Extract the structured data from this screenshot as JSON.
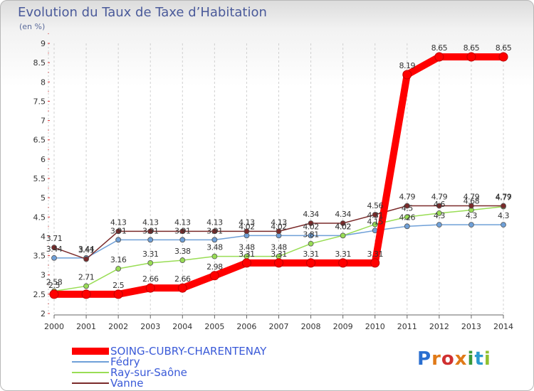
{
  "title": "Evolution du Taux de Taxe d’Habitation",
  "subtitle": "(en %)",
  "chart_data": {
    "type": "line",
    "title": "Evolution du Taux de Taxe d’Habitation",
    "subtitle": "(en %)",
    "xlabel": "",
    "ylabel": "",
    "x": [
      "2000",
      "2001",
      "2002",
      "2003",
      "2004",
      "2005",
      "2006",
      "2007",
      "2008",
      "2009",
      "2010",
      "2011",
      "2012",
      "2013",
      "2014"
    ],
    "ylim": [
      2,
      9
    ],
    "yticks": [
      "2",
      "2.5",
      "3",
      "3.5",
      "4",
      "4.5",
      "5",
      "5.5",
      "6",
      "6.5",
      "7",
      "7.5",
      "8",
      "8.5",
      "9"
    ],
    "grid": "vertical dashed",
    "legend_position": "bottom-left",
    "series": [
      {
        "name": "SOING-CUBRY-CHARENTENAY",
        "color": "#ff0000",
        "values": [
          2.5,
          2.5,
          2.5,
          2.66,
          2.66,
          2.98,
          3.31,
          3.31,
          3.31,
          3.31,
          3.31,
          8.19,
          8.65,
          8.65,
          8.65
        ],
        "labels": [
          "2.5",
          "",
          "2.5",
          "2.66",
          "2.66",
          "2.98",
          "3.31",
          "3.31",
          "3.31",
          "3.31",
          "3.31",
          "8.19",
          "8.65",
          "8.65",
          "8.65"
        ]
      },
      {
        "name": "Fédry",
        "color": "#6fa0d8",
        "values": [
          3.44,
          3.44,
          3.91,
          3.91,
          3.91,
          3.91,
          4.02,
          4.02,
          4.02,
          4.02,
          4.15,
          4.26,
          4.3,
          4.3,
          4.3
        ],
        "labels": [
          "3.44",
          "3.44",
          "3.91",
          "3.91",
          "3.91",
          "3.91",
          "4.02",
          "4.02",
          "4.02",
          "4.02",
          "4.15",
          "4.26",
          "4.3",
          "4.3",
          "4.3"
        ]
      },
      {
        "name": "Ray-sur-Saône",
        "color": "#99dd55",
        "values": [
          2.58,
          2.71,
          3.16,
          3.31,
          3.38,
          3.48,
          3.48,
          3.48,
          3.81,
          4.02,
          4.31,
          4.5,
          4.6,
          4.68,
          4.77
        ],
        "labels": [
          "2.58",
          "2.71",
          "3.16",
          "3.31",
          "3.38",
          "3.48",
          "3.48",
          "3.48",
          "3.81",
          "4.02",
          "4.31",
          "4.5",
          "4.6",
          "4.68",
          "4.77"
        ]
      },
      {
        "name": "Vanne",
        "color": "#7a2a2a",
        "values": [
          3.71,
          3.41,
          4.13,
          4.13,
          4.13,
          4.13,
          4.13,
          4.13,
          4.34,
          4.34,
          4.56,
          4.79,
          4.79,
          4.79,
          4.79
        ],
        "labels": [
          "3.71",
          "3.41",
          "4.13",
          "4.13",
          "4.13",
          "4.13",
          "4.13",
          "4.13",
          "4.34",
          "4.34",
          "4.56",
          "4.79",
          "4.79",
          "4.79",
          "4.79"
        ]
      }
    ]
  },
  "logo": {
    "letters": [
      "P",
      "r",
      "o",
      "x",
      "i",
      "t",
      "i"
    ],
    "colors": [
      "#2a6fd0",
      "#e07a18",
      "#d03030",
      "#e07a18",
      "#3a9a3a",
      "#2a9ad0",
      "#90c030"
    ]
  }
}
